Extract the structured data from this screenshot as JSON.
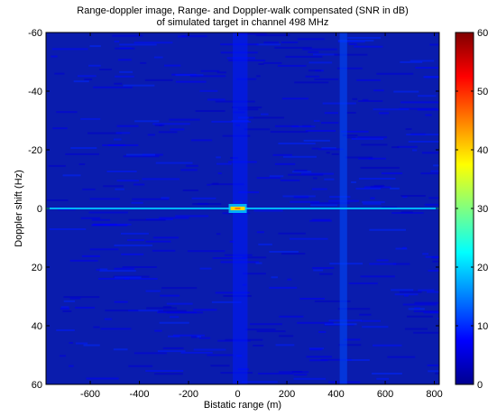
{
  "chart_data": {
    "type": "heatmap",
    "title_lines": [
      "Range-doppler image, Range- and Doppler-walk compensated (SNR in dB)",
      "of simulated target in channel 498 MHz"
    ],
    "xlabel": "Bistatic range (m)",
    "ylabel": "Doppler shift (Hz)",
    "xlim": [
      -780,
      820
    ],
    "ylim": [
      -60,
      60
    ],
    "y_reversed": true,
    "x_ticks": [
      -600,
      -400,
      -200,
      0,
      200,
      400,
      600,
      800
    ],
    "y_ticks": [
      -60,
      -40,
      -20,
      0,
      20,
      40,
      60
    ],
    "colorbar": {
      "min": 0,
      "max": 60,
      "ticks": [
        0,
        10,
        20,
        30,
        40,
        50,
        60
      ],
      "colormap": "jet"
    },
    "background_snr_db": 4,
    "features": [
      {
        "label": "target peak",
        "x": 0,
        "y": 0,
        "snr_db": 40
      },
      {
        "label": "zero-doppler ridge",
        "x_range": [
          -780,
          820
        ],
        "y": 0,
        "snr_db": 18
      },
      {
        "label": "range stripe",
        "x_range": [
          -20,
          40
        ],
        "snr_db": 9
      },
      {
        "label": "range stripe",
        "x_range": [
          415,
          445
        ],
        "snr_db": 12
      }
    ]
  }
}
